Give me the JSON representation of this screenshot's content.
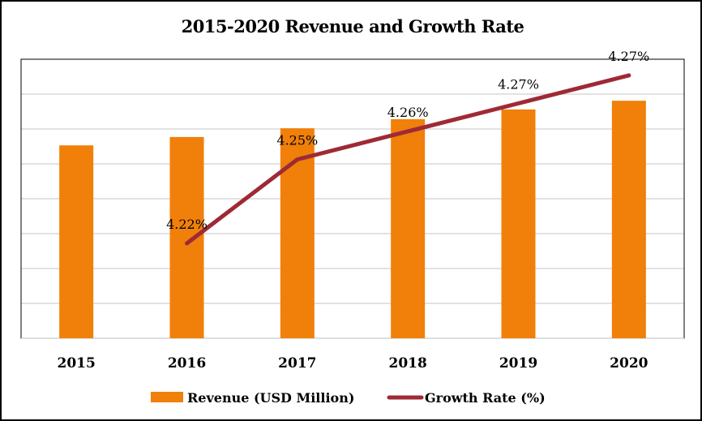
{
  "chart_data": {
    "type": "bar",
    "title": "2015-2020 Revenue and Growth Rate",
    "xlabel": "",
    "ylabel": "",
    "categories": [
      "2015",
      "2016",
      "2017",
      "2018",
      "2019",
      "2020"
    ],
    "series": [
      {
        "name": "Revenue (USD Million)",
        "type": "bar",
        "axis": "primary",
        "color": "#F0800A",
        "values": [
          5.53,
          5.77,
          6.02,
          6.28,
          6.56,
          6.81
        ]
      },
      {
        "name": "Growth Rate (%)",
        "type": "line",
        "axis": "secondary",
        "color": "#9E2A36",
        "values": [
          null,
          4.22,
          4.247,
          4.256,
          4.265,
          4.274
        ],
        "data_labels": [
          null,
          "4.22%",
          "4.25%",
          "4.26%",
          "4.27%",
          "4.27%"
        ]
      }
    ],
    "ylim": [
      0,
      8
    ],
    "y2lim": [
      4.1895,
      4.2792
    ],
    "y_tick_labels_visible": false,
    "grid": true,
    "legend": "bottom",
    "grid_color": "#D9D9D9"
  }
}
